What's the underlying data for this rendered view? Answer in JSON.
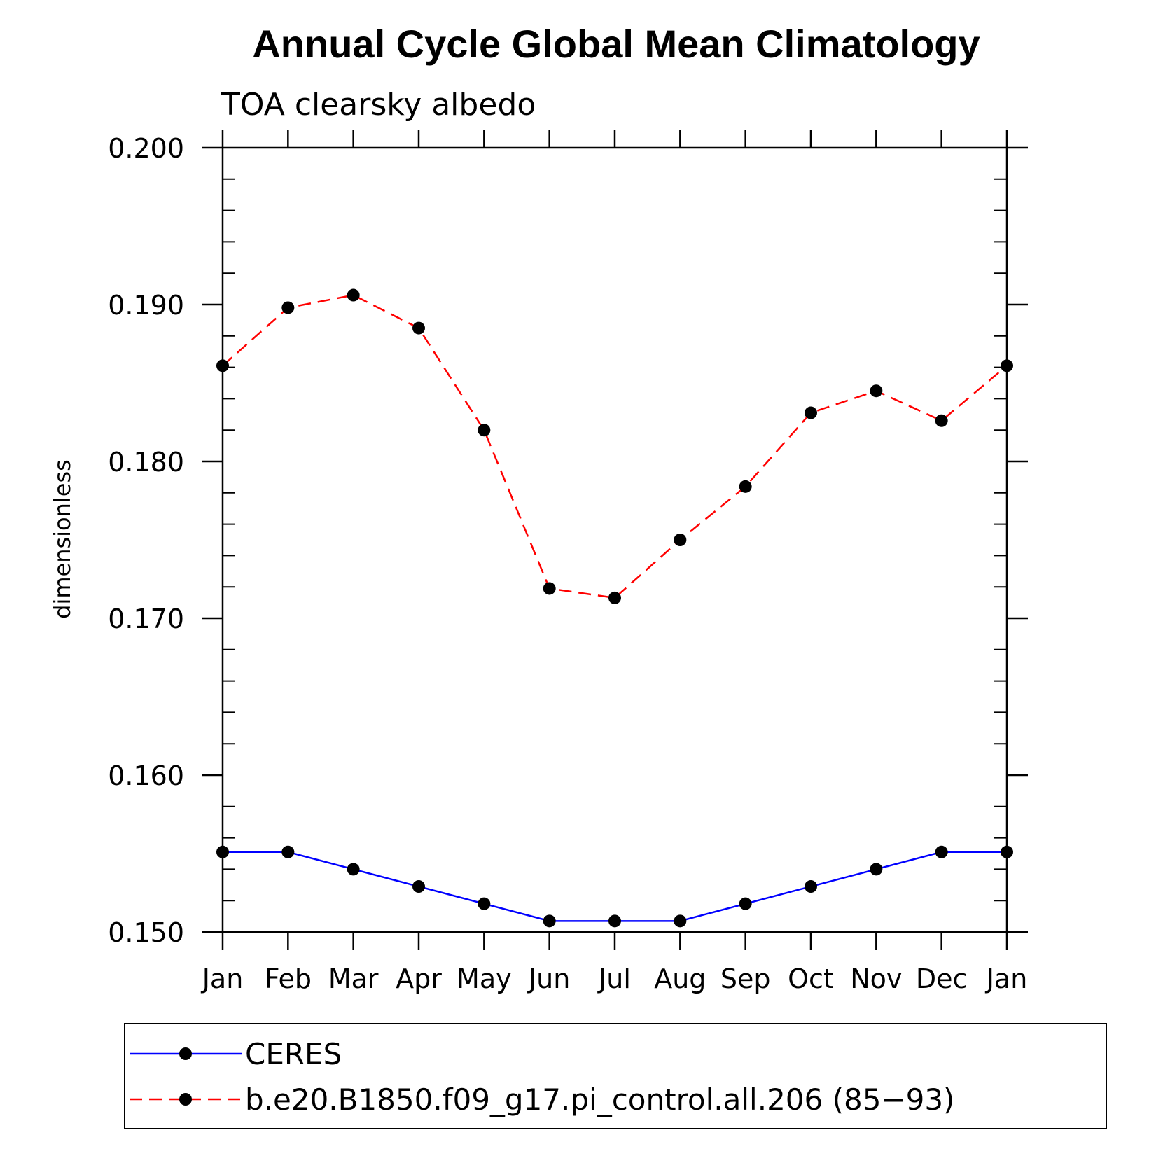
{
  "chart_data": {
    "type": "line",
    "title": "Annual Cycle Global Mean Climatology",
    "subtitle": "TOA clearsky albedo",
    "xlabel": "",
    "ylabel": "dimensionless",
    "categories": [
      "Jan",
      "Feb",
      "Mar",
      "Apr",
      "May",
      "Jun",
      "Jul",
      "Aug",
      "Sep",
      "Oct",
      "Nov",
      "Dec",
      "Jan"
    ],
    "ylim": [
      0.15,
      0.2
    ],
    "yticks": [
      0.15,
      0.16,
      0.17,
      0.18,
      0.19,
      0.2
    ],
    "ytick_labels": [
      "0.150",
      "0.160",
      "0.170",
      "0.180",
      "0.190",
      "0.200"
    ],
    "y_minor_step": 0.002,
    "series": [
      {
        "name": "CERES",
        "color": "#0000ff",
        "style": "solid",
        "values": [
          0.1551,
          0.1551,
          0.154,
          0.1529,
          0.1518,
          0.1507,
          0.1507,
          0.1507,
          0.1518,
          0.1529,
          0.154,
          0.1551,
          0.1551
        ]
      },
      {
        "name": "b.e20.B1850.f09_g17.pi_control.all.206 (85−93)",
        "color": "#ff0000",
        "style": "dashed",
        "values": [
          0.1861,
          0.1898,
          0.1906,
          0.1885,
          0.182,
          0.1719,
          0.1713,
          0.175,
          0.1784,
          0.1831,
          0.1845,
          0.1826,
          0.1861
        ]
      }
    ],
    "marker_color": "#000000",
    "legend_position": "bottom"
  }
}
